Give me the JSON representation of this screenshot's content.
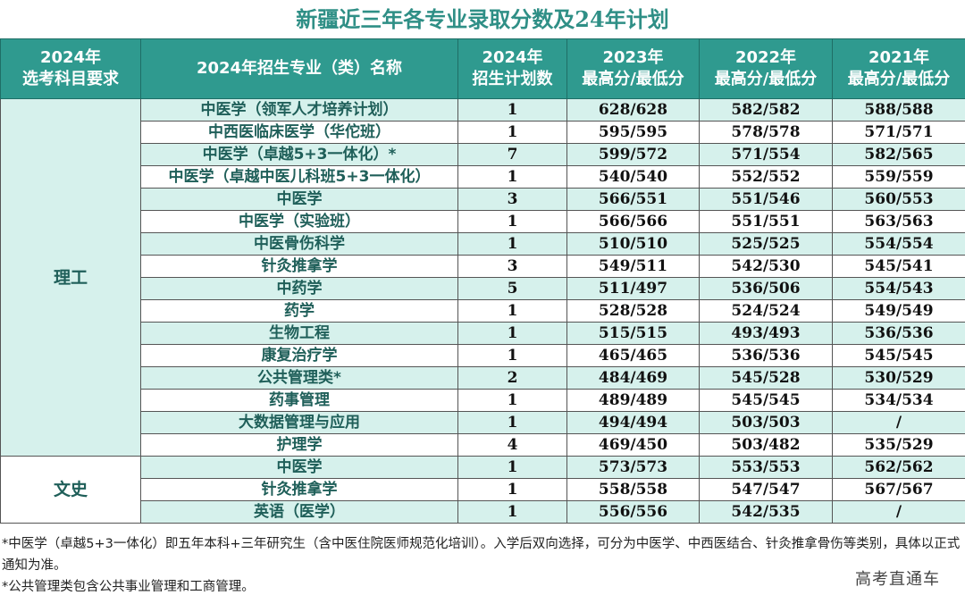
{
  "title": "新疆近三年各专业录取分数及24年计划",
  "headers": [
    [
      "2024年",
      "选考科目要求"
    ],
    [
      "2024年招生专业（类）名称"
    ],
    [
      "2024年",
      "招生计划数"
    ],
    [
      "2023年",
      "最高分/最低分"
    ],
    [
      "2022年",
      "最高分/最低分"
    ],
    [
      "2021年",
      "最高分/最低分"
    ]
  ],
  "groups": [
    {
      "name": "理工",
      "rows": [
        {
          "major": "中医学（领军人才培养计划）",
          "plan": "1",
          "y2023": "628/628",
          "y2022": "582/582",
          "y2021": "588/588"
        },
        {
          "major": "中西医临床医学（华佗班）",
          "plan": "1",
          "y2023": "595/595",
          "y2022": "578/578",
          "y2021": "571/571"
        },
        {
          "major": "中医学（卓越5+3一体化）*",
          "plan": "7",
          "y2023": "599/572",
          "y2022": "571/554",
          "y2021": "582/565"
        },
        {
          "major": "中医学（卓越中医儿科班5+3一体化）",
          "plan": "1",
          "y2023": "540/540",
          "y2022": "552/552",
          "y2021": "559/559"
        },
        {
          "major": "中医学",
          "plan": "3",
          "y2023": "566/551",
          "y2022": "551/546",
          "y2021": "560/553"
        },
        {
          "major": "中医学（实验班）",
          "plan": "1",
          "y2023": "566/566",
          "y2022": "551/551",
          "y2021": "563/563"
        },
        {
          "major": "中医骨伤科学",
          "plan": "1",
          "y2023": "510/510",
          "y2022": "525/525",
          "y2021": "554/554"
        },
        {
          "major": "针灸推拿学",
          "plan": "3",
          "y2023": "549/511",
          "y2022": "542/530",
          "y2021": "545/541"
        },
        {
          "major": "中药学",
          "plan": "5",
          "y2023": "511/497",
          "y2022": "536/506",
          "y2021": "554/543"
        },
        {
          "major": "药学",
          "plan": "1",
          "y2023": "528/528",
          "y2022": "524/524",
          "y2021": "549/549"
        },
        {
          "major": "生物工程",
          "plan": "1",
          "y2023": "515/515",
          "y2022": "493/493",
          "y2021": "536/536"
        },
        {
          "major": "康复治疗学",
          "plan": "1",
          "y2023": "465/465",
          "y2022": "536/536",
          "y2021": "545/545"
        },
        {
          "major": "公共管理类*",
          "plan": "2",
          "y2023": "484/469",
          "y2022": "545/528",
          "y2021": "530/529"
        },
        {
          "major": "药事管理",
          "plan": "1",
          "y2023": "489/489",
          "y2022": "545/545",
          "y2021": "534/534"
        },
        {
          "major": "大数据管理与应用",
          "plan": "1",
          "y2023": "494/494",
          "y2022": "503/503",
          "y2021": "/"
        },
        {
          "major": "护理学",
          "plan": "4",
          "y2023": "469/450",
          "y2022": "503/482",
          "y2021": "535/529"
        }
      ]
    },
    {
      "name": "文史",
      "rows": [
        {
          "major": "中医学",
          "plan": "1",
          "y2023": "573/573",
          "y2022": "553/553",
          "y2021": "562/562"
        },
        {
          "major": "针灸推拿学",
          "plan": "1",
          "y2023": "558/558",
          "y2022": "547/547",
          "y2021": "567/567"
        },
        {
          "major": "英语（医学）",
          "plan": "1",
          "y2023": "556/556",
          "y2022": "542/535",
          "y2021": "/"
        }
      ]
    }
  ],
  "notes": [
    "*中医学（卓越5+3一体化）即五年本科+三年研究生（含中医住院医师规范化培训）。入学后双向选择，可分为中医学、中西医结合、针灸推拿骨伤等类别，具体以正式通知为准。",
    "*公共管理类包含公共事业管理和工商管理。"
  ],
  "watermark": "高考直通车",
  "colors": {
    "header_bg": "#2f9a8f",
    "title": "#2f8f86",
    "stripe": "#d6f1ec",
    "text_accent": "#1f5f59"
  }
}
